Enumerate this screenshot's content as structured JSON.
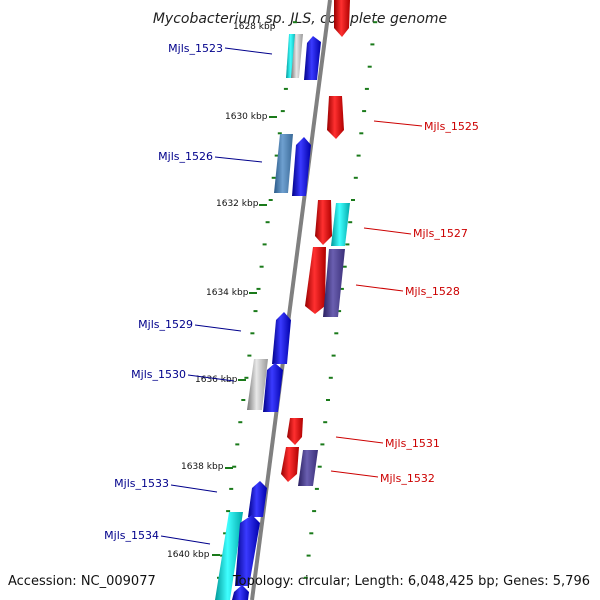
{
  "title": "Mycobacterium sp. JLS, complete genome",
  "footer": {
    "accession": "Accession: NC_009077",
    "topology": "Topology: circular; Length: 6,048,425 bp; Genes: 5,796"
  },
  "colors": {
    "forward": "#0000ee",
    "reverse": "#ee0000",
    "cyan": "#00dddd",
    "gray": "#b0b0b0",
    "steel": "#4a7fb0",
    "slate": "#4a3f8a",
    "backbone": "#808080",
    "tick": "#1a7a1a",
    "label_forward": "#00008b",
    "label_reverse": "#cc0000"
  },
  "kbp_labels": [
    "1628 kbp",
    "1630 kbp",
    "1632 kbp",
    "1634 kbp",
    "1636 kbp",
    "1638 kbp",
    "1640 kbp"
  ],
  "forward_labels": [
    "Mjls_1523",
    "Mjls_1526",
    "Mjls_1529",
    "Mjls_1530",
    "Mjls_1533",
    "Mjls_1534"
  ],
  "reverse_labels": [
    "Mjls_1525",
    "Mjls_1527",
    "Mjls_1528",
    "Mjls_1531",
    "Mjls_1532"
  ]
}
